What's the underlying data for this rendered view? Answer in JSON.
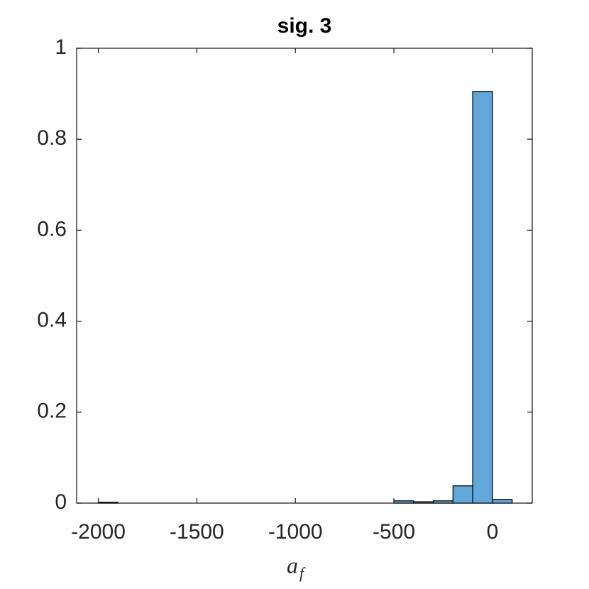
{
  "chart_data": {
    "type": "histogram",
    "title": "sig. 3",
    "xlabel": [
      "a",
      "f"
    ],
    "bins": [
      -2000,
      -1900,
      -1800,
      -1700,
      -1600,
      -1500,
      -1400,
      -1300,
      -1200,
      -1100,
      -1000,
      -900,
      -800,
      -700,
      -600,
      -500,
      -400,
      -300,
      -200,
      -100,
      0,
      100
    ],
    "values": [
      0.002,
      0,
      0,
      0,
      0,
      0,
      0,
      0,
      0,
      0,
      0,
      0,
      0,
      0,
      0,
      0.005,
      0.003,
      0.005,
      0.038,
      0.905,
      0.008
    ],
    "color": "#62a8da",
    "xlim": [
      -2110,
      202
    ],
    "ylim": [
      0,
      1
    ],
    "xticks": [
      -2000,
      -1500,
      -1000,
      -500,
      0
    ],
    "yticks": [
      0,
      0.2,
      0.4,
      0.6,
      0.8,
      1
    ]
  }
}
